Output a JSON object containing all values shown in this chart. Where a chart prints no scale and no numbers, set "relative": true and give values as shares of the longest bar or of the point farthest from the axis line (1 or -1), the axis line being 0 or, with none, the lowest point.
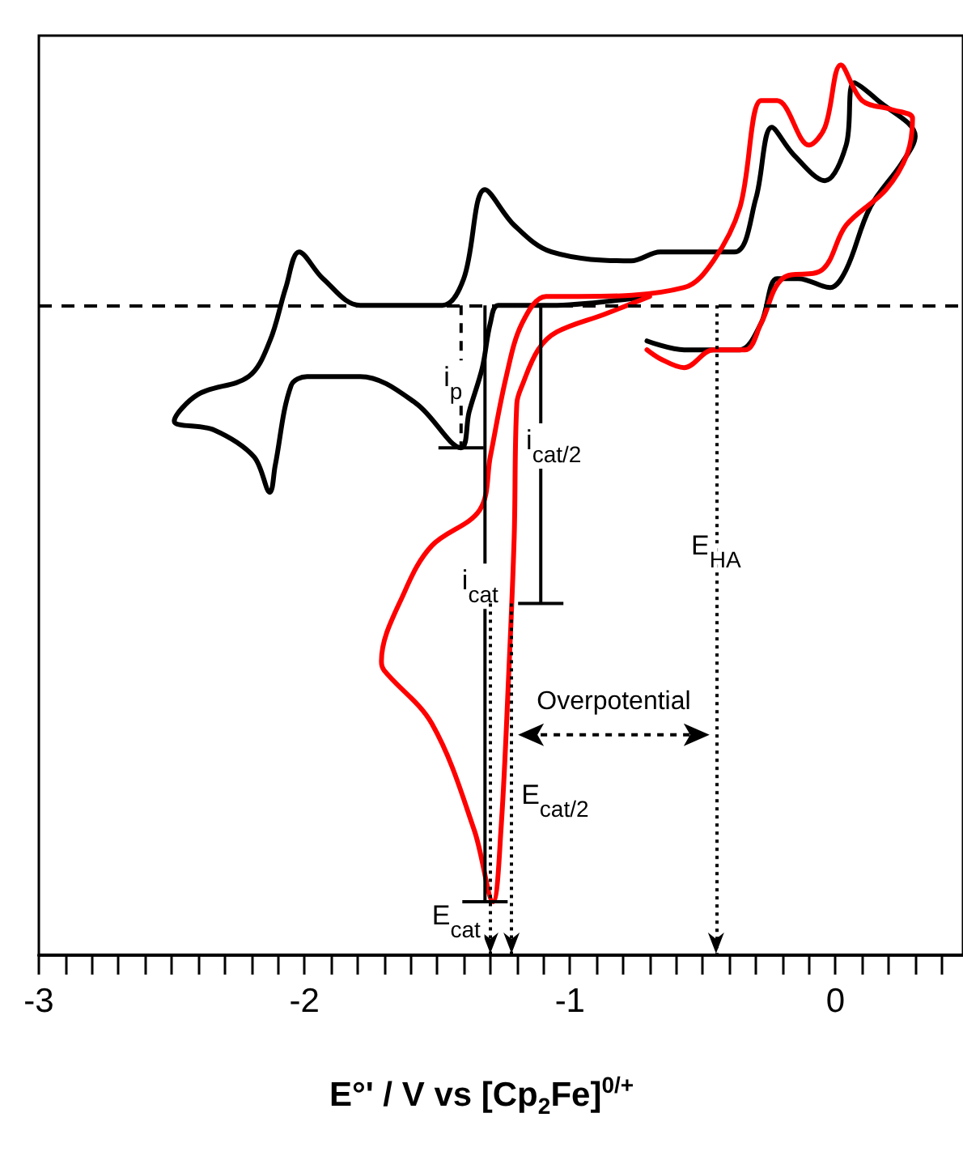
{
  "chart_data": {
    "type": "line",
    "relative": true,
    "xlabel": "E°' / V vs [Cp$_{2}$Fe]$^{0/+}$",
    "xlim": [
      -3,
      0.48
    ],
    "xticks": [
      -3,
      {
        "value": -2.9,
        "label": null
      },
      {
        "value": -2.8,
        "label": null
      },
      {
        "value": -2.7,
        "label": null
      },
      {
        "value": -2.6,
        "label": null
      },
      {
        "value": -2.5,
        "label": null
      },
      {
        "value": -2.4,
        "label": null
      },
      {
        "value": -2.3,
        "label": null
      },
      {
        "value": -2.2,
        "label": null
      },
      {
        "value": -2.1,
        "label": null
      },
      -2,
      {
        "value": -1.9,
        "label": null
      },
      {
        "value": -1.8,
        "label": null
      },
      {
        "value": -1.7,
        "label": null
      },
      {
        "value": -1.6,
        "label": null
      },
      {
        "value": -1.5,
        "label": null
      },
      {
        "value": -1.4,
        "label": null
      },
      {
        "value": -1.3,
        "label": null
      },
      {
        "value": -1.2,
        "label": null
      },
      {
        "value": -1.1,
        "label": null
      },
      -1,
      {
        "value": -0.9,
        "label": null
      },
      {
        "value": -0.8,
        "label": null
      },
      {
        "value": -0.7,
        "label": null
      },
      {
        "value": -0.6,
        "label": null
      },
      {
        "value": -0.5,
        "label": null
      },
      {
        "value": -0.4,
        "label": null
      },
      {
        "value": -0.3,
        "label": null
      },
      {
        "value": -0.2,
        "label": null
      },
      {
        "value": -0.1,
        "label": null
      },
      0,
      {
        "value": 0.1,
        "label": null
      },
      {
        "value": 0.2,
        "label": null
      },
      {
        "value": 0.3,
        "label": null
      },
      {
        "value": 0.4,
        "label": null
      }
    ],
    "series": [
      {
        "color": "#000000",
        "x": [
          -0.71,
          -1.07,
          -1.27,
          -1.3,
          -1.33,
          -1.38,
          -1.41,
          -1.58,
          -1.79,
          -1.99,
          -2.05,
          -2.11,
          -2.13,
          -2.19,
          -2.34,
          -2.49,
          -2.4,
          -2.21,
          -2.13,
          -2.07,
          -2.02,
          -1.93,
          -1.79,
          -1.48,
          -1.4,
          -1.32,
          -1.21,
          -1.07,
          -0.77,
          -0.66,
          -0.57,
          -0.38,
          -0.3,
          -0.24,
          -0.16,
          -0.04,
          0.04,
          0.07,
          0.16,
          0.3,
          0.25,
          0.13,
          0.04,
          -0.02,
          -0.14,
          -0.22,
          -0.28,
          -0.36,
          -0.46,
          -0.57,
          -0.71
        ],
        "values": [
          0.74,
          0.73,
          0.73,
          0.71,
          0.66,
          0.61,
          0.57,
          0.62,
          0.65,
          0.65,
          0.64,
          0.55,
          0.52,
          0.56,
          0.59,
          0.6,
          0.63,
          0.65,
          0.69,
          0.75,
          0.79,
          0.76,
          0.73,
          0.73,
          0.76,
          0.86,
          0.82,
          0.79,
          0.78,
          0.79,
          0.79,
          0.79,
          0.85,
          0.93,
          0.9,
          0.87,
          0.91,
          0.98,
          0.96,
          0.92,
          0.89,
          0.84,
          0.77,
          0.75,
          0.76,
          0.76,
          0.71,
          0.68,
          0.68,
          0.68,
          0.69
        ]
      },
      {
        "color": "#ff0000",
        "x": [
          -0.7,
          -0.87,
          -1.05,
          -1.12,
          -1.18,
          -1.2,
          -1.21,
          -1.23,
          -1.26,
          -1.29,
          -1.36,
          -1.52,
          -1.7,
          -1.71,
          -1.62,
          -1.52,
          -1.34,
          -1.3,
          -1.24,
          -1.18,
          -1.09,
          -0.97,
          -0.57,
          -0.46,
          -0.36,
          -0.28,
          -0.22,
          -0.1,
          -0.04,
          0.02,
          0.1,
          0.21,
          0.29,
          0.27,
          0.19,
          0.04,
          -0.05,
          -0.2,
          -0.28,
          -0.34,
          -0.46,
          -0.57,
          -0.66,
          -0.71
        ],
        "values": [
          0.74,
          0.72,
          0.7,
          0.68,
          0.64,
          0.62,
          0.47,
          0.32,
          0.14,
          0.06,
          0.14,
          0.26,
          0.32,
          0.33,
          0.41,
          0.46,
          0.5,
          0.56,
          0.65,
          0.71,
          0.74,
          0.74,
          0.75,
          0.78,
          0.84,
          0.96,
          0.96,
          0.91,
          0.93,
          1.0,
          0.96,
          0.95,
          0.94,
          0.9,
          0.86,
          0.82,
          0.77,
          0.76,
          0.71,
          0.68,
          0.68,
          0.66,
          0.67,
          0.68
        ]
      }
    ],
    "ref_lines": [
      {
        "axis": "y",
        "value": 0.73,
        "line_style": "dashed",
        "color": "#000000"
      },
      {
        "axis": "x",
        "value": -1.3,
        "label": "E$_{cat}$",
        "line_style": "dotted",
        "color": "#000000"
      },
      {
        "axis": "x",
        "value": -1.22,
        "label": "E$_{cat/2}$",
        "line_style": "dotted",
        "color": "#000000"
      },
      {
        "axis": "x",
        "value": -0.45,
        "label": "E$_{HA}$",
        "line_style": "dotted",
        "color": "#000000"
      }
    ],
    "annotations": [
      "i$_{p}$",
      "i$_{cat}$",
      "i$_{cat/2}$",
      "Overpotential"
    ]
  }
}
